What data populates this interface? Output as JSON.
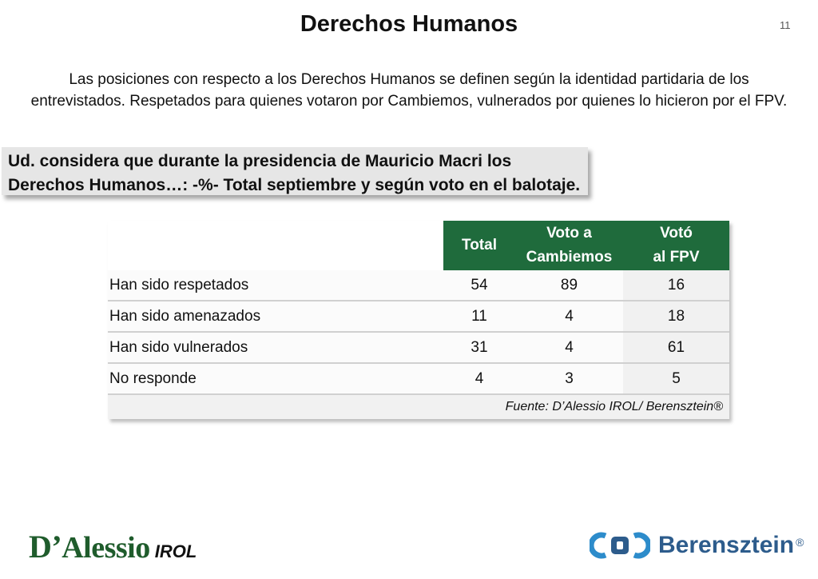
{
  "page": {
    "title": "Derechos Humanos",
    "page_number": "11",
    "intro_line1": "Las posiciones con respecto a los Derechos Humanos se definen según la identidad partidaria de los",
    "intro_line2": "entrevistados. Respetados para quienes votaron por Cambiemos, vulnerados por quienes lo hicieron por el FPV."
  },
  "question": {
    "line1": "Ud. considera que durante la presidencia de Mauricio Macri los",
    "line2": "Derechos Humanos…: -%- Total septiembre y según voto en el balotaje."
  },
  "table": {
    "headers": {
      "total": "Total",
      "cambiemos_line1": "Voto a",
      "cambiemos_line2": "Cambiemos",
      "fpv_line1": "Votó",
      "fpv_line2": "al FPV"
    },
    "rows": [
      {
        "label": "Han sido respetados",
        "total": "54",
        "cambiemos": "89",
        "fpv": "16"
      },
      {
        "label": "Han sido amenazados",
        "total": "11",
        "cambiemos": "4",
        "fpv": "18"
      },
      {
        "label": "Han sido vulnerados",
        "total": "31",
        "cambiemos": "4",
        "fpv": "61"
      },
      {
        "label": "No responde",
        "total": "4",
        "cambiemos": "3",
        "fpv": "5"
      }
    ],
    "source": "Fuente: D’Alessio IROL/ Berensztein®"
  },
  "logos": {
    "left_brand_initial": "D’",
    "left_brand_rest": "Alessio",
    "left_sub": "IROL",
    "right_name": "Berensztein",
    "right_reg": "®"
  },
  "colors": {
    "header_green": "#1f6b3c",
    "brand_green": "#1f5c2c",
    "brand_blue": "#2d5c8c"
  }
}
